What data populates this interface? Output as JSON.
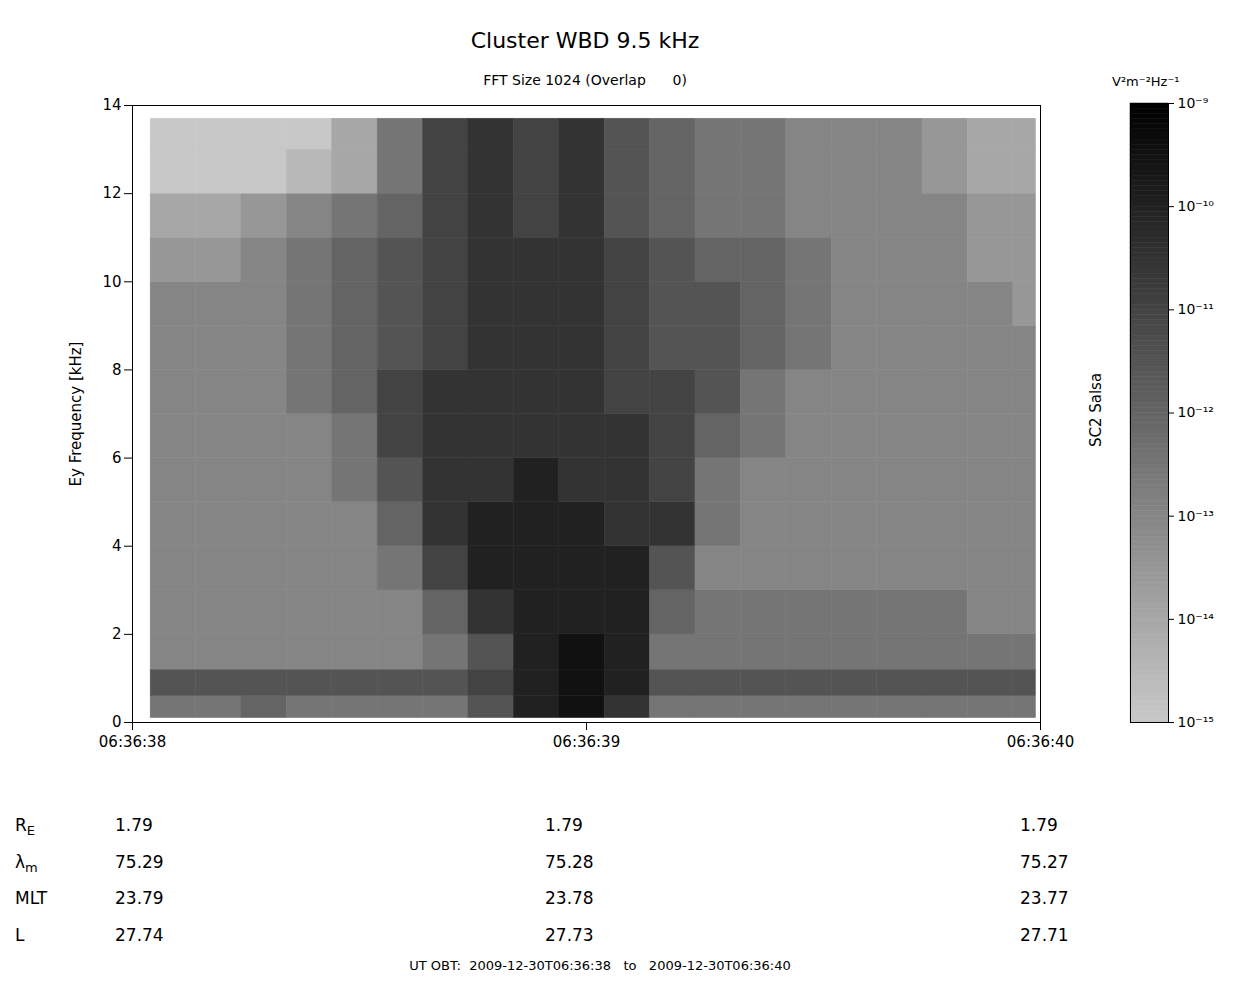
{
  "chart_data": {
    "type": "heatmap",
    "title": "Cluster WBD 9.5 kHz",
    "subtitle": "FFT Size 1024 (Overlap      0)",
    "ylabel": "Ey Frequency [kHz]",
    "side_label": "SC2 Salsa",
    "xlim": [
      0,
      2
    ],
    "xticks": [
      {
        "value": 0,
        "label": "06:36:38"
      },
      {
        "value": 1,
        "label": "06:36:39"
      },
      {
        "value": 2,
        "label": "06:36:40"
      }
    ],
    "ylim": [
      0,
      14
    ],
    "yticks": [
      0,
      2,
      4,
      6,
      8,
      10,
      12,
      14
    ],
    "x_bins": [
      0.04,
      0.14,
      0.24,
      0.34,
      0.44,
      0.54,
      0.64,
      0.74,
      0.84,
      0.94,
      1.04,
      1.14,
      1.24,
      1.34,
      1.44,
      1.54,
      1.64,
      1.74,
      1.84,
      1.94,
      1.99
    ],
    "y_bins": [
      0.1,
      0.6,
      1.2,
      2,
      3,
      4,
      5,
      6,
      7,
      8,
      9,
      10,
      11,
      12,
      13,
      13.7
    ],
    "cells": [
      [
        3e-13,
        3e-13,
        1e-12,
        3e-13,
        3e-13,
        3e-13,
        3e-13,
        3e-12,
        1e-10,
        3e-10,
        3e-11,
        3e-13,
        3e-13,
        3e-13,
        3e-13,
        3e-13,
        3e-13,
        3e-13,
        3e-13,
        3e-13
      ],
      [
        3e-12,
        3e-12,
        3e-12,
        3e-12,
        3e-12,
        3e-12,
        3e-12,
        1e-11,
        1e-10,
        3e-10,
        1e-10,
        3e-12,
        3e-12,
        3e-12,
        3e-12,
        3e-12,
        3e-12,
        3e-12,
        3e-12,
        3e-12
      ],
      [
        1e-13,
        1e-13,
        1e-13,
        1e-13,
        1e-13,
        1e-13,
        3e-13,
        3e-12,
        1e-10,
        3e-10,
        1e-10,
        3e-13,
        3e-13,
        3e-13,
        3e-13,
        3e-13,
        3e-13,
        3e-13,
        3e-13,
        3e-13
      ],
      [
        1e-13,
        1e-13,
        1e-13,
        1e-13,
        1e-13,
        1e-13,
        1e-12,
        3e-11,
        1e-10,
        1e-10,
        1e-10,
        1e-12,
        3e-13,
        3e-13,
        3e-13,
        3e-13,
        3e-13,
        3e-13,
        1e-13,
        1e-13
      ],
      [
        1e-13,
        1e-13,
        1e-13,
        1e-13,
        1e-13,
        3e-13,
        1e-11,
        1e-10,
        1e-10,
        1e-10,
        1e-10,
        3e-12,
        1e-13,
        1e-13,
        1e-13,
        1e-13,
        1e-13,
        1e-13,
        1e-13,
        1e-13
      ],
      [
        1e-13,
        1e-13,
        1e-13,
        1e-13,
        1e-13,
        1e-12,
        3e-11,
        1e-10,
        1e-10,
        1e-10,
        3e-11,
        3e-11,
        3e-13,
        1e-13,
        1e-13,
        1e-13,
        1e-13,
        1e-13,
        1e-13,
        1e-13
      ],
      [
        1e-13,
        1e-13,
        1e-13,
        1e-13,
        3e-13,
        3e-12,
        3e-11,
        3e-11,
        1e-10,
        3e-11,
        3e-11,
        1e-11,
        3e-13,
        1e-13,
        1e-13,
        1e-13,
        1e-13,
        1e-13,
        1e-13,
        1e-13
      ],
      [
        1e-13,
        1e-13,
        1e-13,
        1e-13,
        3e-13,
        1e-11,
        3e-11,
        3e-11,
        3e-11,
        3e-11,
        3e-11,
        1e-11,
        1e-12,
        3e-13,
        1e-13,
        1e-13,
        1e-13,
        1e-13,
        1e-13,
        1e-13
      ],
      [
        1e-13,
        1e-13,
        1e-13,
        3e-13,
        1e-12,
        1e-11,
        3e-11,
        3e-11,
        3e-11,
        3e-11,
        1e-11,
        1e-11,
        3e-12,
        3e-13,
        1e-13,
        1e-13,
        1e-13,
        1e-13,
        1e-13,
        1e-13
      ],
      [
        1e-13,
        1e-13,
        1e-13,
        3e-13,
        1e-12,
        3e-12,
        1e-11,
        3e-11,
        3e-11,
        3e-11,
        1e-11,
        3e-12,
        3e-12,
        1e-12,
        3e-13,
        1e-13,
        1e-13,
        1e-13,
        1e-13,
        1e-13
      ],
      [
        1e-13,
        1e-13,
        1e-13,
        3e-13,
        1e-12,
        3e-12,
        1e-11,
        3e-11,
        3e-11,
        3e-11,
        1e-11,
        3e-12,
        3e-12,
        1e-12,
        3e-13,
        1e-13,
        1e-13,
        1e-13,
        1e-13,
        3e-14
      ],
      [
        3e-14,
        3e-14,
        1e-13,
        3e-13,
        1e-12,
        3e-12,
        1e-11,
        3e-11,
        3e-11,
        3e-11,
        1e-11,
        3e-12,
        1e-12,
        1e-12,
        3e-13,
        1e-13,
        1e-13,
        1e-13,
        3e-14,
        3e-14
      ],
      [
        1e-14,
        1e-14,
        3e-14,
        1e-13,
        3e-13,
        1e-12,
        1e-11,
        3e-11,
        1e-11,
        3e-11,
        3e-12,
        1e-12,
        3e-13,
        3e-13,
        1e-13,
        1e-13,
        1e-13,
        1e-13,
        3e-14,
        3e-14
      ],
      [
        1e-15,
        1e-15,
        1e-15,
        3e-15,
        1e-14,
        3e-13,
        1e-11,
        3e-11,
        1e-11,
        3e-11,
        3e-12,
        1e-12,
        3e-13,
        3e-13,
        1e-13,
        1e-13,
        1e-13,
        3e-14,
        1e-14,
        1e-14
      ],
      [
        1e-15,
        1e-15,
        1e-15,
        1e-15,
        1e-14,
        3e-13,
        1e-11,
        3e-11,
        1e-11,
        3e-11,
        3e-12,
        1e-12,
        3e-13,
        3e-13,
        1e-13,
        1e-13,
        1e-13,
        3e-14,
        1e-14,
        1e-14
      ]
    ],
    "colorbar": {
      "label": "V²m⁻²Hz⁻¹",
      "range": [
        1e-15,
        1e-09
      ],
      "colors": [
        "#c8c8c8",
        "#000000"
      ],
      "ticks": [
        {
          "value": 1e-09,
          "label": "10⁻⁹"
        },
        {
          "value": 1e-10,
          "label": "10⁻¹⁰"
        },
        {
          "value": 1e-11,
          "label": "10⁻¹¹"
        },
        {
          "value": 1e-12,
          "label": "10⁻¹²"
        },
        {
          "value": 1e-13,
          "label": "10⁻¹³"
        },
        {
          "value": 1e-14,
          "label": "10⁻¹⁴"
        },
        {
          "value": 1e-15,
          "label": "10⁻¹⁵"
        }
      ]
    },
    "info_table": {
      "rows": [
        {
          "label": "R",
          "sub": "E",
          "values": [
            1.79,
            1.79,
            1.79
          ]
        },
        {
          "label": "λ",
          "sub": "m",
          "values": [
            75.29,
            75.28,
            75.27
          ]
        },
        {
          "label": "MLT",
          "values": [
            23.79,
            23.78,
            23.77
          ]
        },
        {
          "label": "L",
          "values": [
            27.74,
            27.73,
            27.71
          ]
        }
      ]
    },
    "footer": "UT OBT:  2009-12-30T06:36:38   to   2009-12-30T06:36:40"
  }
}
